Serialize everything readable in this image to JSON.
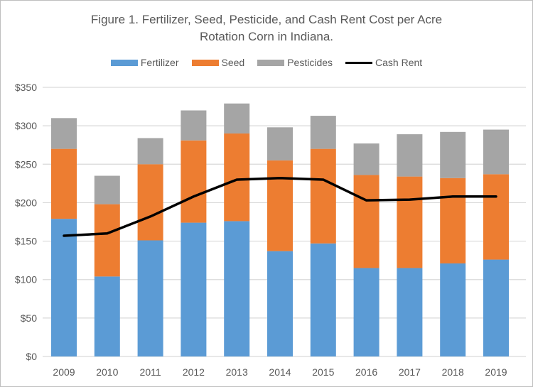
{
  "chart_data": {
    "type": "bar",
    "stacked": true,
    "title": "Figure 1. Fertilizer, Seed, Pesticide, and Cash Rent Cost per Acre",
    "subtitle": "Rotation Corn in Indiana.",
    "categories": [
      "2009",
      "2010",
      "2011",
      "2012",
      "2013",
      "2014",
      "2015",
      "2016",
      "2017",
      "2018",
      "2019"
    ],
    "series": [
      {
        "name": "Fertilizer",
        "type": "bar",
        "color": "#5b9bd5",
        "values": [
          179,
          104,
          151,
          174,
          176,
          137,
          147,
          115,
          115,
          121,
          126
        ]
      },
      {
        "name": "Seed",
        "type": "bar",
        "color": "#ed7d31",
        "values": [
          91,
          94,
          99,
          107,
          114,
          118,
          123,
          121,
          119,
          111,
          111
        ]
      },
      {
        "name": "Pesticides",
        "type": "bar",
        "color": "#a5a5a5",
        "values": [
          40,
          37,
          34,
          39,
          39,
          43,
          43,
          41,
          55,
          60,
          58
        ]
      },
      {
        "name": "Cash Rent",
        "type": "line",
        "color": "#000000",
        "values": [
          157,
          160,
          182,
          208,
          230,
          232,
          230,
          203,
          204,
          208,
          208
        ]
      }
    ],
    "yticks": [
      "$0",
      "$50",
      "$100",
      "$150",
      "$200",
      "$250",
      "$300",
      "$350"
    ],
    "ylim": [
      0,
      350
    ],
    "grid": true,
    "legend": "top"
  }
}
